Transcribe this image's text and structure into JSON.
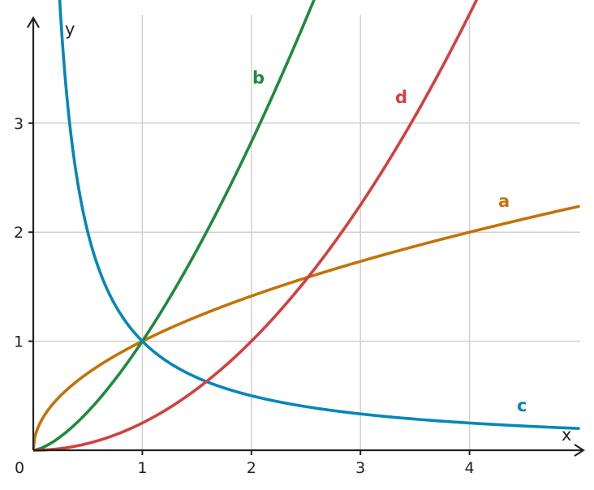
{
  "chart_data": {
    "type": "line",
    "title": "",
    "xlabel": "x",
    "ylabel": "y",
    "xlim": [
      0,
      5
    ],
    "ylim": [
      0,
      4
    ],
    "x_ticks": [
      "1",
      "2",
      "3",
      "4"
    ],
    "y_ticks": [
      "1",
      "2",
      "3"
    ],
    "origin_label": "0",
    "grid": true,
    "series": [
      {
        "name": "a",
        "formula": "sqrt(x)",
        "color": "#c07408",
        "x": [
          0,
          0.25,
          0.5,
          1,
          1.5,
          2,
          2.5,
          3,
          3.5,
          4,
          4.5,
          5
        ],
        "values": [
          0,
          0.5,
          0.707,
          1,
          1.225,
          1.414,
          1.581,
          1.732,
          1.871,
          2,
          2.121,
          2.236
        ]
      },
      {
        "name": "b",
        "formula": "x^1.5",
        "color": "#1f8a3e",
        "x": [
          0,
          0.25,
          0.5,
          1,
          1.5,
          2,
          2.5
        ],
        "values": [
          0,
          0.125,
          0.354,
          1,
          1.837,
          2.828,
          3.953
        ]
      },
      {
        "name": "c",
        "formula": "1/x",
        "color": "#0587b8",
        "x": [
          0.25,
          0.5,
          1,
          1.5,
          2,
          2.5,
          3,
          3.5,
          4,
          4.5,
          5
        ],
        "values": [
          4,
          2,
          1,
          0.667,
          0.5,
          0.4,
          0.333,
          0.286,
          0.25,
          0.222,
          0.2
        ]
      },
      {
        "name": "d",
        "formula": "x^2/4",
        "color": "#d2403f",
        "x": [
          0,
          0.5,
          1,
          1.5,
          2,
          2.5,
          3,
          3.5,
          4
        ],
        "values": [
          0,
          0.0625,
          0.25,
          0.5625,
          1,
          1.5625,
          2.25,
          3.0625,
          4
        ]
      }
    ]
  }
}
